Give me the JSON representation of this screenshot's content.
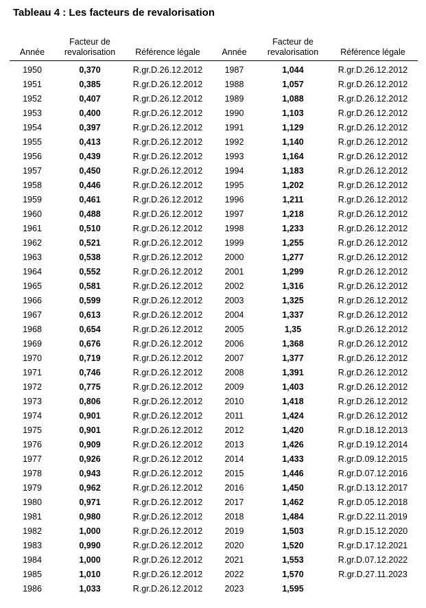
{
  "title": "Tableau 4 : Les facteurs de revalorisation",
  "headers": {
    "year": "Année",
    "factor_line1": "Facteur de",
    "factor_line2": "revalorisation",
    "reference": "Référence légale"
  },
  "rows": [
    {
      "y1": "1950",
      "f1": "0,370",
      "r1": "R.gr.D.26.12.2012",
      "y2": "1987",
      "f2": "1,044",
      "r2": "R.gr.D.26.12.2012"
    },
    {
      "y1": "1951",
      "f1": "0,385",
      "r1": "R.gr.D.26.12.2012",
      "y2": "1988",
      "f2": "1,057",
      "r2": "R.gr.D.26.12.2012"
    },
    {
      "y1": "1952",
      "f1": "0,407",
      "r1": "R.gr.D.26.12.2012",
      "y2": "1989",
      "f2": "1,088",
      "r2": "R.gr.D.26.12.2012"
    },
    {
      "y1": "1953",
      "f1": "0,400",
      "r1": "R.gr.D.26.12.2012",
      "y2": "1990",
      "f2": "1,103",
      "r2": "R.gr.D.26.12.2012"
    },
    {
      "y1": "1954",
      "f1": "0,397",
      "r1": "R.gr.D.26.12.2012",
      "y2": "1991",
      "f2": "1,129",
      "r2": "R.gr.D.26.12.2012"
    },
    {
      "y1": "1955",
      "f1": "0,413",
      "r1": "R.gr.D.26.12.2012",
      "y2": "1992",
      "f2": "1,140",
      "r2": "R.gr.D.26.12.2012"
    },
    {
      "y1": "1956",
      "f1": "0,439",
      "r1": "R.gr.D.26.12.2012",
      "y2": "1993",
      "f2": "1,164",
      "r2": "R.gr.D.26.12.2012"
    },
    {
      "y1": "1957",
      "f1": "0,450",
      "r1": "R.gr.D.26.12.2012",
      "y2": "1994",
      "f2": "1,183",
      "r2": "R.gr.D.26.12.2012"
    },
    {
      "y1": "1958",
      "f1": "0,446",
      "r1": "R.gr.D.26.12.2012",
      "y2": "1995",
      "f2": "1,202",
      "r2": "R.gr.D.26.12.2012"
    },
    {
      "y1": "1959",
      "f1": "0,461",
      "r1": "R.gr.D.26.12.2012",
      "y2": "1996",
      "f2": "1,211",
      "r2": "R.gr.D.26.12.2012"
    },
    {
      "y1": "1960",
      "f1": "0,488",
      "r1": "R.gr.D.26.12.2012",
      "y2": "1997",
      "f2": "1,218",
      "r2": "R.gr.D.26.12.2012"
    },
    {
      "y1": "1961",
      "f1": "0,510",
      "r1": "R.gr.D.26.12.2012",
      "y2": "1998",
      "f2": "1,233",
      "r2": "R.gr.D.26.12.2012"
    },
    {
      "y1": "1962",
      "f1": "0,521",
      "r1": "R.gr.D.26.12.2012",
      "y2": "1999",
      "f2": "1,255",
      "r2": "R.gr.D.26.12.2012"
    },
    {
      "y1": "1963",
      "f1": "0,538",
      "r1": "R.gr.D.26.12.2012",
      "y2": "2000",
      "f2": "1,277",
      "r2": "R.gr.D.26.12.2012"
    },
    {
      "y1": "1964",
      "f1": "0,552",
      "r1": "R.gr.D.26.12.2012",
      "y2": "2001",
      "f2": "1,299",
      "r2": "R.gr.D.26.12.2012"
    },
    {
      "y1": "1965",
      "f1": "0,581",
      "r1": "R.gr.D.26.12.2012",
      "y2": "2002",
      "f2": "1,316",
      "r2": "R.gr.D.26.12.2012"
    },
    {
      "y1": "1966",
      "f1": "0,599",
      "r1": "R.gr.D.26.12.2012",
      "y2": "2003",
      "f2": "1,325",
      "r2": "R.gr.D.26.12.2012"
    },
    {
      "y1": "1967",
      "f1": "0,613",
      "r1": "R.gr.D.26.12.2012",
      "y2": "2004",
      "f2": "1,337",
      "r2": "R.gr.D.26.12.2012"
    },
    {
      "y1": "1968",
      "f1": "0,654",
      "r1": "R.gr.D.26.12.2012",
      "y2": "2005",
      "f2": "1,35",
      "r2": "R.gr.D.26.12.2012"
    },
    {
      "y1": "1969",
      "f1": "0,676",
      "r1": "R.gr.D.26.12.2012",
      "y2": "2006",
      "f2": "1,368",
      "r2": "R.gr.D.26.12.2012"
    },
    {
      "y1": "1970",
      "f1": "0,719",
      "r1": "R.gr.D.26.12.2012",
      "y2": "2007",
      "f2": "1,377",
      "r2": "R.gr.D.26.12.2012"
    },
    {
      "y1": "1971",
      "f1": "0,746",
      "r1": "R.gr.D.26.12.2012",
      "y2": "2008",
      "f2": "1,391",
      "r2": "R.gr.D.26.12.2012"
    },
    {
      "y1": "1972",
      "f1": "0,775",
      "r1": "R.gr.D.26.12.2012",
      "y2": "2009",
      "f2": "1,403",
      "r2": "R.gr.D.26.12.2012"
    },
    {
      "y1": "1973",
      "f1": "0,806",
      "r1": "R.gr.D.26.12.2012",
      "y2": "2010",
      "f2": "1,418",
      "r2": "R.gr.D.26.12.2012"
    },
    {
      "y1": "1974",
      "f1": "0,901",
      "r1": "R.gr.D.26.12.2012",
      "y2": "2011",
      "f2": "1,424",
      "r2": "R.gr.D.26.12.2012"
    },
    {
      "y1": "1975",
      "f1": "0,901",
      "r1": "R.gr.D.26.12.2012",
      "y2": "2012",
      "f2": "1,420",
      "r2": "R.gr.D.18.12.2013"
    },
    {
      "y1": "1976",
      "f1": "0,909",
      "r1": "R.gr.D.26.12.2012",
      "y2": "2013",
      "f2": "1,426",
      "r2": "R.gr.D.19.12.2014"
    },
    {
      "y1": "1977",
      "f1": "0,926",
      "r1": "R.gr.D.26.12.2012",
      "y2": "2014",
      "f2": "1,433",
      "r2": "R.gr.D.09.12.2015"
    },
    {
      "y1": "1978",
      "f1": "0,943",
      "r1": "R.gr.D.26.12.2012",
      "y2": "2015",
      "f2": "1,446",
      "r2": "R.gr.D.07.12.2016"
    },
    {
      "y1": "1979",
      "f1": "0,962",
      "r1": "R.gr.D.26.12.2012",
      "y2": "2016",
      "f2": "1,450",
      "r2": "R.gr.D.13.12.2017"
    },
    {
      "y1": "1980",
      "f1": "0,971",
      "r1": "R.gr.D.26.12.2012",
      "y2": "2017",
      "f2": "1,462",
      "r2": "R.gr.D.05.12.2018"
    },
    {
      "y1": "1981",
      "f1": "0,980",
      "r1": "R.gr.D.26.12.2012",
      "y2": "2018",
      "f2": "1,484",
      "r2": "R.gr.D.22.11.2019"
    },
    {
      "y1": "1982",
      "f1": "1,000",
      "r1": "R.gr.D.26.12.2012",
      "y2": "2019",
      "f2": "1,503",
      "r2": "R.gr.D.15.12.2020"
    },
    {
      "y1": "1983",
      "f1": "0,990",
      "r1": "R.gr.D.26.12.2012",
      "y2": "2020",
      "f2": "1,520",
      "r2": "R.gr.D.17.12.2021"
    },
    {
      "y1": "1984",
      "f1": "1,000",
      "r1": "R.gr.D.26.12.2012",
      "y2": "2021",
      "f2": "1,553",
      "r2": "R.gr.D.07.12.2022"
    },
    {
      "y1": "1985",
      "f1": "1,010",
      "r1": "R.gr.D.26.12.2012",
      "y2": "2022",
      "f2": "1,570",
      "r2": "R.gr.D.27.11.2023"
    },
    {
      "y1": "1986",
      "f1": "1,033",
      "r1": "R.gr.D.26.12.2012",
      "y2": "2023",
      "f2": "1,595",
      "r2": ""
    }
  ]
}
